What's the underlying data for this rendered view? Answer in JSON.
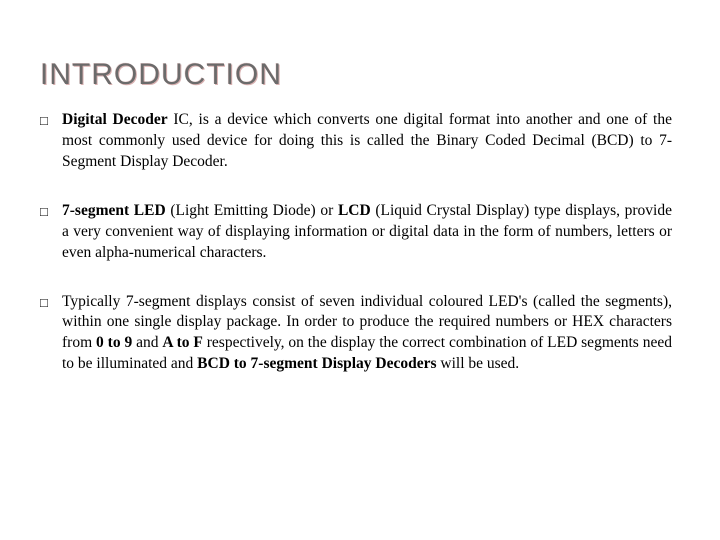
{
  "title": "INTRODUCTION",
  "title_color": "#6b6b6b",
  "title_fontsize": 30,
  "body_fontsize": 15.5,
  "text_color": "#000000",
  "background_color": "#ffffff",
  "bullets": [
    {
      "pre": "",
      "bold1": "Digital Decoder",
      "mid1": " IC, is a device which converts one digital format into another and one of the most commonly used device for doing this is called the Binary Coded Decimal (BCD) to 7-Segment Display Decoder.",
      "bold2": "",
      "mid2": "",
      "bold3": "",
      "tail": ""
    },
    {
      "pre": "",
      "bold1": "7-segment LED",
      "mid1": " (Light Emitting Diode) or ",
      "bold2": "LCD",
      "mid2": " (Liquid Crystal Display) type displays, provide a very convenient way of displaying information or digital data in the form of numbers, letters or even alpha-numerical characters.",
      "bold3": "",
      "tail": ""
    },
    {
      "pre": "Typically 7-segment displays consist of seven individual coloured LED's (called the segments), within one single display package. In order to produce the required numbers or HEX characters from ",
      "bold1": "0 to 9",
      "mid1": " and ",
      "bold2": "A to F",
      "mid2": " respectively, on the display the correct combination of LED segments need to be illuminated and ",
      "bold3": "BCD to 7-segment Display Decoders",
      "tail": " will be used."
    }
  ]
}
